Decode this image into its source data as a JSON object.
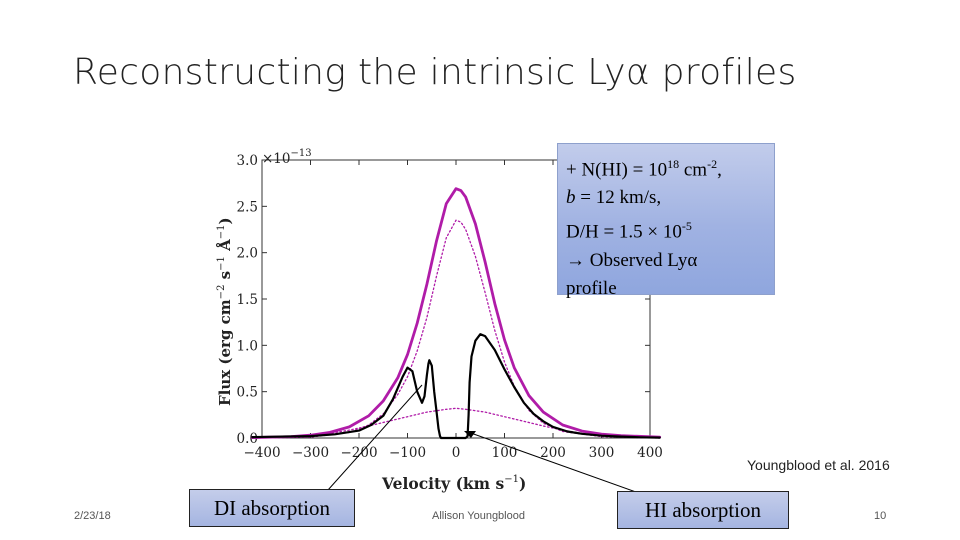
{
  "slide": {
    "title": "Reconstructing the intrinsic Lyα profiles",
    "date": "2/23/18",
    "author": "Allison Youngblood",
    "page_number": "10",
    "citation": "Youngblood et al. 2016"
  },
  "callout": {
    "line1": "+ N(HI) = 10",
    "line1_exp": "18",
    "line1_unit": " cm",
    "line1_unit_exp": "-2",
    "line1_end": ",",
    "line2_b": "b",
    "line2_rest": " = 12 km/s,",
    "line3": "D/H = 1.5 × 10",
    "line3_exp": "-5",
    "line4_arrow": "→",
    "line4": " Observed Lyα",
    "line5": "profile"
  },
  "annotations": {
    "di_label": "DI absorption",
    "hi_label": "HI absorption"
  },
  "chart_data": {
    "type": "line",
    "xlabel": "Velocity (km s",
    "xlabel_exp": "−1",
    "xlabel_end": ")",
    "ylabel": "Flux (erg cm",
    "ylabel_exp1": "−2",
    "ylabel_mid": " s",
    "ylabel_exp2": "−1",
    "ylabel_mid2": " Å",
    "ylabel_exp3": "−1",
    "ylabel_end": ")",
    "y_multiplier": "×10",
    "y_multiplier_exp": "−13",
    "xlim": [
      -400,
      400
    ],
    "ylim": [
      0,
      3.0
    ],
    "x_ticks": [
      -400,
      -300,
      -200,
      -100,
      0,
      100,
      200,
      300,
      400
    ],
    "x_tick_labels": [
      "−400",
      "−300",
      "−200",
      "−100",
      "0",
      "100",
      "200",
      "300",
      "400"
    ],
    "y_ticks": [
      0.0,
      0.5,
      1.0,
      1.5,
      2.0,
      2.5,
      3.0
    ],
    "y_tick_labels": [
      "0.0",
      "0.5",
      "1.0",
      "1.5",
      "2.0",
      "2.5",
      "3.0"
    ],
    "colors": {
      "intrinsic": "#b01ca8",
      "observed": "#000000"
    },
    "series": [
      {
        "name": "intrinsic profile",
        "style": "solid",
        "x": [
          -420,
          -340,
          -300,
          -260,
          -220,
          -180,
          -150,
          -120,
          -100,
          -80,
          -60,
          -40,
          -20,
          0,
          10,
          20,
          40,
          60,
          80,
          100,
          120,
          150,
          180,
          220,
          260,
          300,
          340,
          420
        ],
        "y": [
          0.004,
          0.015,
          0.03,
          0.06,
          0.12,
          0.24,
          0.4,
          0.65,
          0.9,
          1.24,
          1.66,
          2.13,
          2.53,
          2.69,
          2.67,
          2.6,
          2.31,
          1.9,
          1.45,
          1.06,
          0.76,
          0.46,
          0.28,
          0.14,
          0.075,
          0.042,
          0.025,
          0.01
        ]
      },
      {
        "name": "intrinsic narrow component",
        "style": "dotted",
        "x": [
          -420,
          -300,
          -220,
          -180,
          -150,
          -120,
          -100,
          -80,
          -60,
          -40,
          -20,
          0,
          10,
          20,
          40,
          60,
          80,
          100,
          120,
          150,
          180,
          220,
          300,
          420
        ],
        "y": [
          0.0,
          0.01,
          0.06,
          0.14,
          0.26,
          0.47,
          0.66,
          0.94,
          1.3,
          1.75,
          2.16,
          2.35,
          2.33,
          2.25,
          1.96,
          1.57,
          1.16,
          0.82,
          0.56,
          0.3,
          0.16,
          0.07,
          0.015,
          0.0
        ]
      },
      {
        "name": "intrinsic broad component",
        "style": "dotted",
        "x": [
          -420,
          -380,
          -340,
          -300,
          -260,
          -220,
          -180,
          -140,
          -100,
          -60,
          -20,
          0,
          20,
          60,
          100,
          140,
          180,
          220,
          260,
          300,
          340,
          380,
          420
        ],
        "y": [
          0.0,
          0.004,
          0.012,
          0.025,
          0.05,
          0.085,
          0.13,
          0.18,
          0.23,
          0.28,
          0.31,
          0.32,
          0.31,
          0.28,
          0.23,
          0.18,
          0.13,
          0.085,
          0.05,
          0.025,
          0.012,
          0.004,
          0.0
        ]
      },
      {
        "name": "observed profile",
        "style": "solid",
        "x": [
          -420,
          -300,
          -250,
          -200,
          -175,
          -150,
          -130,
          -110,
          -100,
          -90,
          -80,
          -70,
          -65,
          -60,
          -57,
          -55,
          -50,
          -45,
          -40,
          -36,
          -33,
          -31,
          -30,
          0,
          20,
          24,
          26,
          28,
          32,
          40,
          50,
          60,
          80,
          100,
          120,
          140,
          160,
          180,
          200,
          230,
          260,
          300,
          340,
          380,
          420
        ],
        "y": [
          0.01,
          0.02,
          0.04,
          0.08,
          0.14,
          0.24,
          0.42,
          0.66,
          0.76,
          0.72,
          0.5,
          0.38,
          0.45,
          0.68,
          0.8,
          0.84,
          0.78,
          0.5,
          0.28,
          0.1,
          0.02,
          0.0,
          0.0,
          0.0,
          0.0,
          0.02,
          0.25,
          0.6,
          0.88,
          1.05,
          1.12,
          1.1,
          0.95,
          0.74,
          0.55,
          0.38,
          0.26,
          0.18,
          0.12,
          0.07,
          0.045,
          0.025,
          0.015,
          0.008,
          0.004
        ]
      }
    ]
  }
}
